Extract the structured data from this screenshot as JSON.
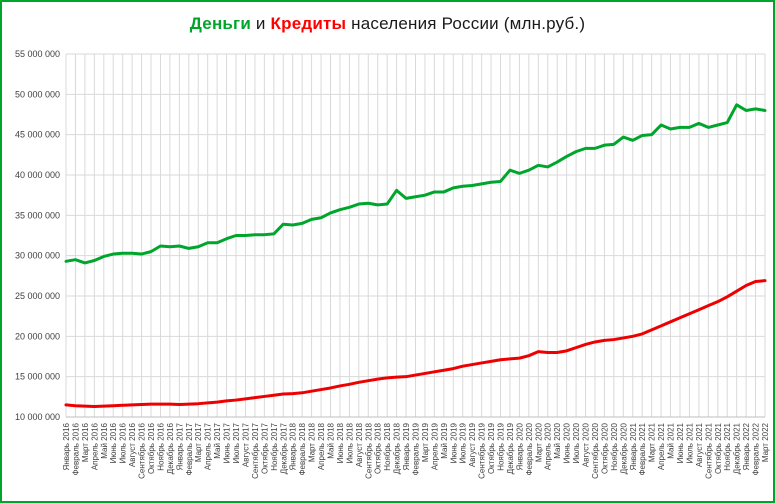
{
  "page": {
    "border_color": "#00a52c",
    "background": "#ffffff"
  },
  "title": {
    "part_money": "Деньги",
    "part_and": " и ",
    "part_credit": "Кредиты",
    "part_rest": " населения России (млн.руб.)",
    "money_color": "#00a52c",
    "credit_color": "#ff0000",
    "text_color": "#1a1a1a"
  },
  "chart_data": {
    "type": "line",
    "title": "Деньги и Кредиты населения России (млн.руб.)",
    "grid": true,
    "legend_position": "none",
    "x_label_rotation": -90,
    "ylim": [
      10000000,
      55000000
    ],
    "y_step": 5000000,
    "y_ticks": [
      "10 000 000",
      "15 000 000",
      "20 000 000",
      "25 000 000",
      "30 000 000",
      "35 000 000",
      "40 000 000",
      "45 000 000",
      "50 000 000",
      "55 000 000"
    ],
    "x": [
      "Январь 2016",
      "Февраль 2016",
      "Март 2016",
      "Апрель 2016",
      "Май 2016",
      "Июнь 2016",
      "Июль 2016",
      "Август 2016",
      "Сентябрь 2016",
      "Октябрь 2016",
      "Ноябрь 2016",
      "Декабрь 2016",
      "Январь 2017",
      "Февраль 2017",
      "Март 2017",
      "Апрель 2017",
      "Май 2017",
      "Июнь 2017",
      "Июль 2017",
      "Август 2017",
      "Сентябрь 2017",
      "Октябрь 2017",
      "Ноябрь 2017",
      "Декабрь 2017",
      "Январь 2018",
      "Февраль 2018",
      "Март 2018",
      "Апрель 2018",
      "Май 2018",
      "Июнь 2018",
      "Июль 2018",
      "Август 2018",
      "Сентябрь 2018",
      "Октябрь 2018",
      "Ноябрь 2018",
      "Декабрь 2018",
      "Январь 2019",
      "Февраль 2019",
      "Март 2019",
      "Апрель 2019",
      "Май 2019",
      "Июнь 2019",
      "Июль 2019",
      "Август 2019",
      "Сентябрь 2019",
      "Октябрь 2019",
      "Ноябрь 2019",
      "Декабрь 2019",
      "Январь 2020",
      "Февраль 2020",
      "Март 2020",
      "Апрель 2020",
      "Май 2020",
      "Июнь 2020",
      "Июль 2020",
      "Август 2020",
      "Сентябрь 2020",
      "Октябрь 2020",
      "Ноябрь 2020",
      "Декабрь 2020",
      "Январь 2021",
      "Февраль 2021",
      "Март 2021",
      "Апрель 2021",
      "Май 2021",
      "Июнь 2021",
      "Июль 2021",
      "Август 2021",
      "Сентябрь 2021",
      "Октябрь 2021",
      "Ноябрь 2021",
      "Декабрь 2021",
      "Январь 2022",
      "Февраль 2022",
      "Март 2022"
    ],
    "series": [
      {
        "name": "Деньги",
        "color": "#00a52c",
        "values": [
          29300000,
          29500000,
          29100000,
          29400000,
          29900000,
          30200000,
          30300000,
          30300000,
          30200000,
          30500000,
          31200000,
          31100000,
          31200000,
          30900000,
          31100000,
          31600000,
          31600000,
          32100000,
          32500000,
          32500000,
          32600000,
          32600000,
          32700000,
          33900000,
          33800000,
          34000000,
          34500000,
          34700000,
          35300000,
          35700000,
          36000000,
          36400000,
          36500000,
          36300000,
          36400000,
          38100000,
          37100000,
          37300000,
          37500000,
          37900000,
          37900000,
          38400000,
          38600000,
          38700000,
          38900000,
          39100000,
          39200000,
          40600000,
          40200000,
          40600000,
          41200000,
          41000000,
          41600000,
          42300000,
          42900000,
          43300000,
          43300000,
          43700000,
          43800000,
          44700000,
          44300000,
          44900000,
          45000000,
          46200000,
          45700000,
          45900000,
          45900000,
          46400000,
          45900000,
          46200000,
          46500000,
          48700000,
          48000000,
          48200000,
          48000000
        ]
      },
      {
        "name": "Кредиты",
        "color": "#ee0000",
        "values": [
          11500000,
          11400000,
          11350000,
          11300000,
          11350000,
          11400000,
          11450000,
          11500000,
          11550000,
          11600000,
          11600000,
          11600000,
          11550000,
          11600000,
          11650000,
          11750000,
          11850000,
          12000000,
          12100000,
          12250000,
          12400000,
          12550000,
          12700000,
          12850000,
          12900000,
          13000000,
          13200000,
          13400000,
          13600000,
          13850000,
          14050000,
          14300000,
          14500000,
          14700000,
          14850000,
          14950000,
          15000000,
          15200000,
          15400000,
          15600000,
          15800000,
          16000000,
          16300000,
          16500000,
          16700000,
          16900000,
          17100000,
          17200000,
          17300000,
          17600000,
          18100000,
          18000000,
          18000000,
          18200000,
          18600000,
          19000000,
          19300000,
          19500000,
          19600000,
          19800000,
          20000000,
          20300000,
          20800000,
          21300000,
          21800000,
          22300000,
          22800000,
          23300000,
          23800000,
          24300000,
          24900000,
          25600000,
          26300000,
          26800000,
          26900000
        ]
      }
    ]
  }
}
